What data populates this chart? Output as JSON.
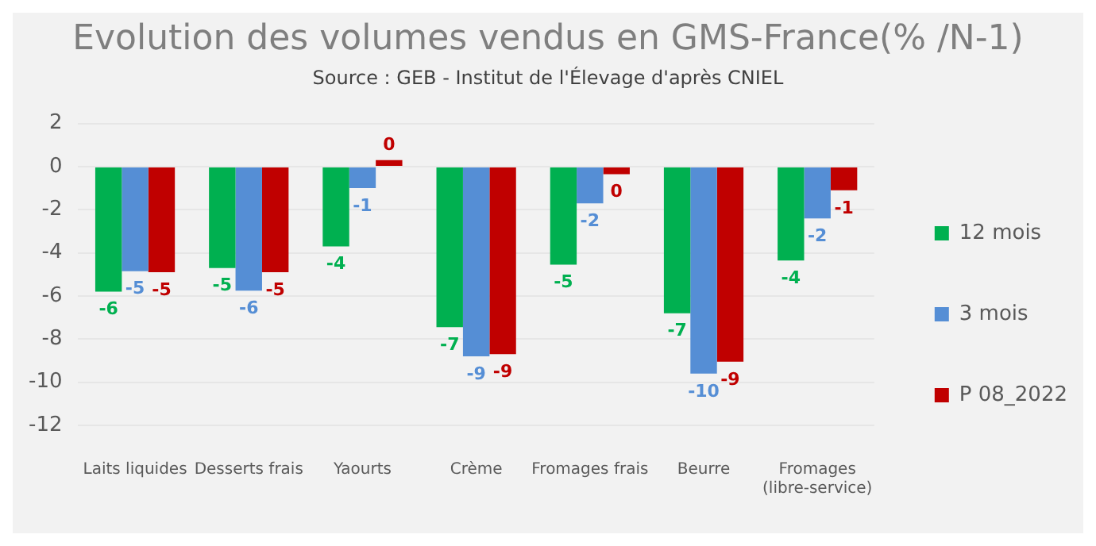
{
  "chart_data": {
    "type": "bar",
    "title": "Evolution des volumes vendus en GMS-France(% /N-1)",
    "subtitle": "Source : GEB - Institut de l'Élevage d'après CNIEL",
    "categories": [
      "Laits liquides",
      "Desserts frais",
      "Yaourts",
      "Crème",
      "Fromages frais",
      "Beurre",
      "Fromages (libre-service)"
    ],
    "series": [
      {
        "name": "12 mois",
        "color": "#00b050",
        "values": [
          -5.8,
          -4.7,
          -3.7,
          -7.45,
          -4.55,
          -6.8,
          -4.35
        ],
        "value_labels": [
          "-6",
          "-5",
          "-4",
          "-7",
          "-5",
          "-7",
          "-4"
        ]
      },
      {
        "name": "3 mois",
        "color": "#558ed5",
        "values": [
          -4.85,
          -5.75,
          -1.0,
          -8.8,
          -1.7,
          -9.6,
          -2.4
        ],
        "value_labels": [
          "-5",
          "-6",
          "-1",
          "-9",
          "-2",
          "-10",
          "-2"
        ]
      },
      {
        "name": "P 08_2022",
        "color": "#c00000",
        "values": [
          -4.9,
          -4.9,
          0.3,
          -8.7,
          -0.35,
          -9.05,
          -1.1
        ],
        "value_labels": [
          "-5",
          "-5",
          "0",
          "-9",
          "0",
          "-9",
          "-1"
        ]
      }
    ],
    "ylim": [
      -12,
      2
    ],
    "yticks": [
      -12,
      -10,
      -8,
      -6,
      -4,
      -2,
      0,
      2
    ],
    "grid": "y",
    "legend": "right"
  }
}
